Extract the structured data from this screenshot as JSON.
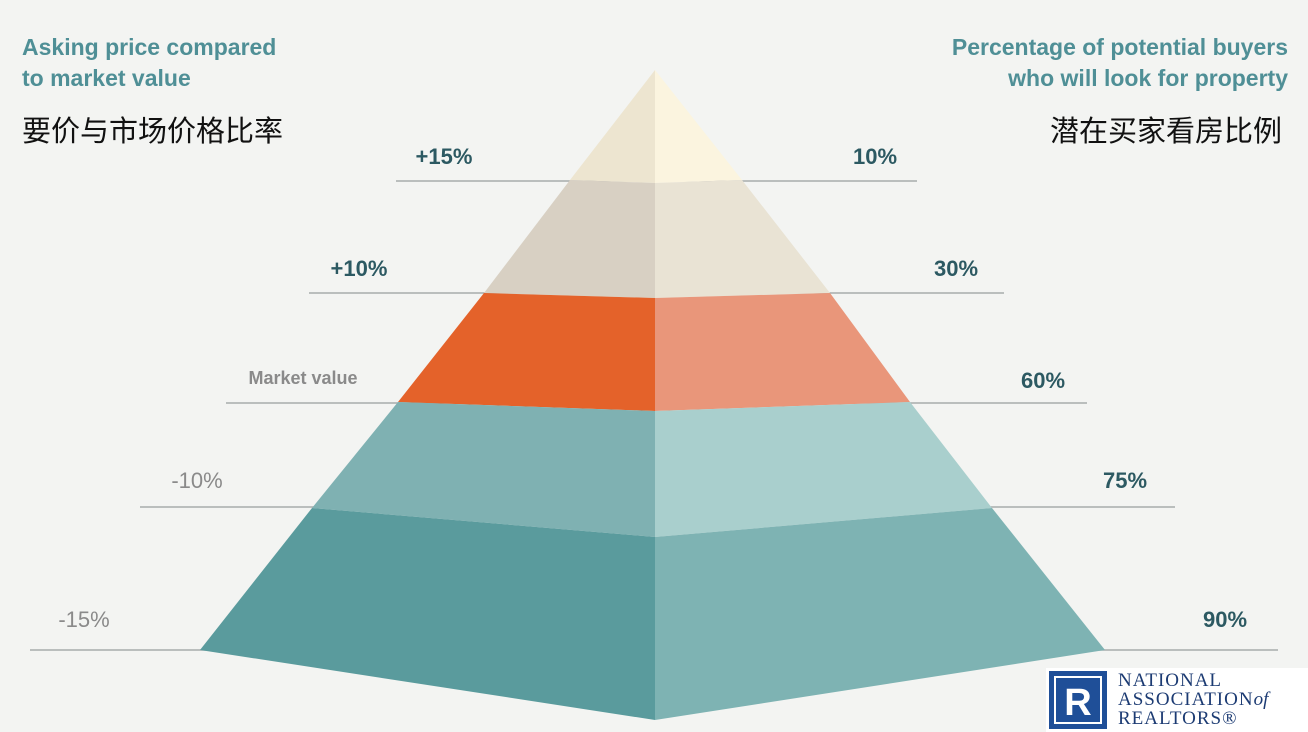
{
  "left_heading": {
    "en": "Asking price compared\nto market value",
    "zh": "要价与市场价格比率"
  },
  "right_heading": {
    "en": "Percentage of potential buyers\nwho will look for property",
    "zh": "潜在买家看房比例"
  },
  "tiers": [
    {
      "asking_label": "+15%",
      "buyers_label": "10%",
      "left_color": "#ede5d0",
      "right_color": "#fbf4df"
    },
    {
      "asking_label": "+10%",
      "buyers_label": "30%",
      "left_color": "#d8d0c3",
      "right_color": "#e9e3d4"
    },
    {
      "asking_label": "Market value",
      "buyers_label": "60%",
      "left_color": "#e4622a",
      "right_color": "#e9967a"
    },
    {
      "asking_label": "-10%",
      "buyers_label": "75%",
      "left_color": "#7fb1b2",
      "right_color": "#a9cfcd"
    },
    {
      "asking_label": "-15%",
      "buyers_label": "90%",
      "left_color": "#5a9b9d",
      "right_color": "#7eb3b3"
    }
  ],
  "label_colors": {
    "dark": "#2c5962",
    "muted": "#8a8a8a",
    "guide_line": "#a8abab"
  },
  "logo": {
    "line1": "NATIONAL",
    "line2": "ASSOCIATION",
    "line2_suffix": "of",
    "line3": "REALTORS®",
    "mark_letter": "R",
    "mark_color": "#1f4f98"
  }
}
